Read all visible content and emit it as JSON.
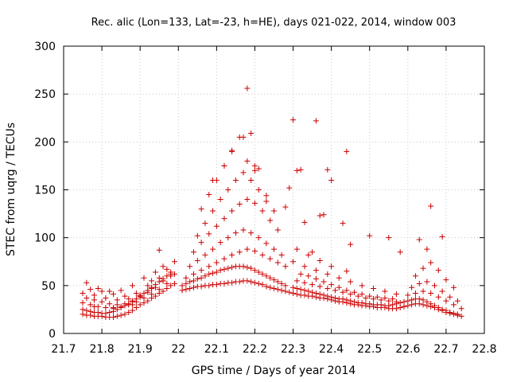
{
  "chart_data": {
    "type": "scatter",
    "title": "Rec. alic (Lon=133, Lat=-23, h=HE), days 021-022, 2014, window 003",
    "xlabel": "GPS time / Days of year 2014",
    "ylabel": "STEC from uqrg / TECUs",
    "xlim": [
      21.7,
      22.8
    ],
    "ylim": [
      0,
      300
    ],
    "xticks": [
      "21.7",
      "21.8",
      "21.9",
      "22",
      "22.1",
      "22.2",
      "22.3",
      "22.4",
      "22.5",
      "22.6",
      "22.7",
      "22.8"
    ],
    "yticks": [
      "0",
      "50",
      "100",
      "150",
      "200",
      "250",
      "300"
    ],
    "grid": true,
    "marker": "plus",
    "color": "#cc0000",
    "series": [
      {
        "x": [
          21.75,
          21.76,
          21.77,
          21.78,
          21.79,
          21.8,
          21.81,
          21.82,
          21.83,
          21.84,
          21.85,
          21.86,
          21.87,
          21.88,
          21.89,
          21.9,
          21.91,
          21.92,
          21.93,
          21.94,
          21.95,
          21.96,
          21.97,
          21.98,
          21.99,
          21.75,
          21.76,
          21.77,
          21.78,
          21.79,
          21.8,
          21.81,
          21.82,
          21.83,
          21.84,
          21.85,
          21.86,
          21.87,
          21.88,
          21.89,
          21.9,
          21.91,
          21.92,
          21.93,
          21.94,
          21.95,
          21.96,
          21.97,
          21.98,
          21.75,
          21.77,
          21.79,
          21.81,
          21.83,
          21.85,
          21.87,
          21.89,
          21.91,
          21.93,
          21.95,
          21.97,
          21.76,
          21.78,
          21.8,
          21.82,
          21.84,
          21.86,
          21.88,
          21.9,
          21.92,
          21.94,
          21.96,
          21.98,
          21.75,
          21.78,
          21.81,
          21.84,
          21.87,
          21.9,
          21.93,
          21.96,
          21.99,
          21.77,
          21.8,
          21.83,
          21.86,
          21.89,
          21.92,
          21.95,
          21.98,
          21.76,
          21.79,
          21.82,
          21.85,
          21.88,
          21.91,
          21.94,
          21.97,
          21.78,
          21.83,
          21.88,
          21.93,
          21.96,
          21.99,
          21.95
        ],
        "y": [
          20,
          19,
          19,
          18,
          18,
          18,
          17,
          17,
          17,
          18,
          19,
          20,
          22,
          24,
          27,
          30,
          32,
          34,
          37,
          39,
          42,
          44,
          47,
          50,
          52,
          25,
          24,
          23,
          22,
          22,
          21,
          21,
          22,
          23,
          25,
          27,
          29,
          31,
          33,
          36,
          39,
          42,
          45,
          48,
          51,
          54,
          57,
          60,
          62,
          32,
          30,
          28,
          27,
          27,
          28,
          30,
          33,
          37,
          41,
          46,
          52,
          37,
          35,
          33,
          31,
          30,
          31,
          34,
          38,
          43,
          48,
          55,
          60,
          42,
          40,
          37,
          35,
          36,
          40,
          47,
          55,
          62,
          46,
          44,
          41,
          39,
          42,
          50,
          58,
          64,
          53,
          47,
          44,
          45,
          50,
          58,
          64,
          67,
          28,
          26,
          30,
          55,
          70,
          75,
          87
        ]
      },
      {
        "x": [
          22.01,
          22.02,
          22.03,
          22.04,
          22.05,
          22.06,
          22.07,
          22.08,
          22.09,
          22.1,
          22.11,
          22.12,
          22.13,
          22.14,
          22.15,
          22.16,
          22.17,
          22.18,
          22.19,
          22.2,
          22.21,
          22.22,
          22.23,
          22.24,
          22.25,
          22.26,
          22.27,
          22.28,
          22.29,
          22.3,
          22.01,
          22.02,
          22.03,
          22.04,
          22.05,
          22.06,
          22.07,
          22.08,
          22.09,
          22.1,
          22.11,
          22.12,
          22.13,
          22.14,
          22.15,
          22.16,
          22.17,
          22.18,
          22.19,
          22.2,
          22.21,
          22.22,
          22.23,
          22.24,
          22.25,
          22.26,
          22.27,
          22.28,
          22.02,
          22.04,
          22.06,
          22.08,
          22.1,
          22.12,
          22.14,
          22.16,
          22.18,
          22.2,
          22.22,
          22.24,
          22.26,
          22.28,
          22.03,
          22.05,
          22.07,
          22.09,
          22.11,
          22.13,
          22.15,
          22.17,
          22.19,
          22.21,
          22.23,
          22.25,
          22.27,
          22.04,
          22.06,
          22.08,
          22.1,
          22.12,
          22.14,
          22.16,
          22.18,
          22.2,
          22.22,
          22.24,
          22.26,
          22.05,
          22.07,
          22.09,
          22.11,
          22.13,
          22.15,
          22.17,
          22.19,
          22.21,
          22.23,
          22.06,
          22.08,
          22.1,
          22.12,
          22.14,
          22.16,
          22.18,
          22.2
        ],
        "y": [
          45,
          46,
          47,
          48,
          49,
          49,
          50,
          50,
          51,
          51,
          52,
          52,
          53,
          53,
          54,
          54,
          55,
          55,
          54,
          53,
          52,
          51,
          49,
          48,
          47,
          46,
          45,
          44,
          43,
          42,
          50,
          52,
          54,
          55,
          57,
          58,
          60,
          62,
          63,
          64,
          66,
          67,
          68,
          69,
          70,
          70,
          70,
          69,
          68,
          66,
          64,
          62,
          60,
          58,
          56,
          54,
          52,
          50,
          58,
          62,
          66,
          70,
          74,
          78,
          82,
          85,
          88,
          86,
          82,
          78,
          74,
          70,
          70,
          76,
          82,
          88,
          95,
          100,
          105,
          108,
          105,
          100,
          94,
          88,
          82,
          85,
          95,
          104,
          112,
          120,
          128,
          135,
          140,
          136,
          128,
          118,
          108,
          102,
          115,
          128,
          140,
          150,
          160,
          168,
          160,
          150,
          138,
          130,
          145,
          160,
          175,
          190,
          205,
          180,
          170
        ]
      },
      {
        "x": [
          22.09,
          22.12,
          22.14,
          22.17,
          22.18,
          22.19,
          22.2,
          22.21,
          22.23,
          22.25,
          22.28,
          22.29,
          22.3,
          22.31,
          22.32,
          22.33,
          22.35,
          22.36,
          22.37,
          22.38,
          22.39,
          22.4,
          22.43,
          22.44
        ],
        "y": [
          160,
          175,
          191,
          205,
          256,
          209,
          175,
          172,
          144,
          128,
          132,
          152,
          223,
          170,
          171,
          116,
          85,
          222,
          123,
          124,
          171,
          160,
          115,
          190
        ]
      },
      {
        "x": [
          22.3,
          22.31,
          22.32,
          22.33,
          22.34,
          22.35,
          22.36,
          22.37,
          22.38,
          22.39,
          22.4,
          22.41,
          22.42,
          22.43,
          22.44,
          22.45,
          22.46,
          22.47,
          22.48,
          22.49,
          22.5,
          22.51,
          22.52,
          22.53,
          22.54,
          22.55,
          22.56,
          22.57,
          22.58,
          22.59,
          22.3,
          22.31,
          22.32,
          22.33,
          22.34,
          22.35,
          22.36,
          22.37,
          22.38,
          22.39,
          22.4,
          22.41,
          22.42,
          22.43,
          22.44,
          22.45,
          22.46,
          22.47,
          22.48,
          22.49,
          22.5,
          22.51,
          22.52,
          22.53,
          22.54,
          22.55,
          22.56,
          22.57,
          22.58,
          22.31,
          22.33,
          22.35,
          22.37,
          22.39,
          22.41,
          22.43,
          22.45,
          22.47,
          22.49,
          22.51,
          22.53,
          22.55,
          22.57,
          22.32,
          22.34,
          22.36,
          22.38,
          22.4,
          22.42,
          22.44,
          22.46,
          22.48,
          22.5,
          22.52,
          22.54,
          22.56,
          22.3,
          22.33,
          22.36,
          22.39,
          22.42,
          22.45,
          22.48,
          22.51,
          22.54,
          22.57,
          22.31,
          22.34,
          22.37,
          22.4,
          22.44,
          22.5,
          22.55,
          22.45,
          22.58
        ],
        "y": [
          42,
          41,
          40,
          40,
          39,
          39,
          38,
          37,
          37,
          36,
          35,
          34,
          33,
          33,
          32,
          31,
          30,
          30,
          29,
          29,
          28,
          28,
          27,
          27,
          27,
          26,
          26,
          26,
          27,
          28,
          48,
          47,
          46,
          45,
          44,
          43,
          42,
          41,
          40,
          39,
          38,
          37,
          36,
          36,
          35,
          34,
          33,
          32,
          32,
          31,
          31,
          30,
          30,
          30,
          29,
          29,
          30,
          31,
          32,
          55,
          53,
          51,
          49,
          47,
          45,
          43,
          41,
          39,
          37,
          36,
          35,
          34,
          33,
          62,
          60,
          57,
          54,
          51,
          48,
          45,
          43,
          41,
          39,
          38,
          37,
          36,
          75,
          70,
          66,
          62,
          58,
          54,
          50,
          47,
          44,
          41,
          88,
          82,
          76,
          70,
          65,
          102,
          100,
          93,
          85
        ]
      },
      {
        "x": [
          22.59,
          22.6,
          22.61,
          22.62,
          22.63,
          22.64,
          22.65,
          22.66,
          22.67,
          22.68,
          22.69,
          22.7,
          22.71,
          22.72,
          22.73,
          22.74,
          22.59,
          22.6,
          22.61,
          22.62,
          22.63,
          22.64,
          22.65,
          22.66,
          22.67,
          22.68,
          22.69,
          22.7,
          22.71,
          22.72,
          22.73,
          22.6,
          22.62,
          22.64,
          22.66,
          22.68,
          22.7,
          22.72,
          22.74,
          22.61,
          22.63,
          22.65,
          22.67,
          22.69,
          22.71,
          22.73,
          22.62,
          22.64,
          22.66,
          22.68,
          22.7,
          22.72,
          22.63,
          22.65,
          22.66,
          22.69
        ],
        "y": [
          28,
          29,
          30,
          31,
          31,
          30,
          29,
          28,
          27,
          25,
          24,
          22,
          21,
          20,
          19,
          18,
          33,
          34,
          35,
          36,
          36,
          35,
          33,
          31,
          29,
          27,
          25,
          24,
          22,
          21,
          20,
          40,
          42,
          44,
          42,
          38,
          34,
          30,
          26,
          48,
          52,
          54,
          50,
          44,
          38,
          34,
          60,
          68,
          74,
          66,
          56,
          48,
          98,
          88,
          133,
          101
        ]
      }
    ]
  }
}
